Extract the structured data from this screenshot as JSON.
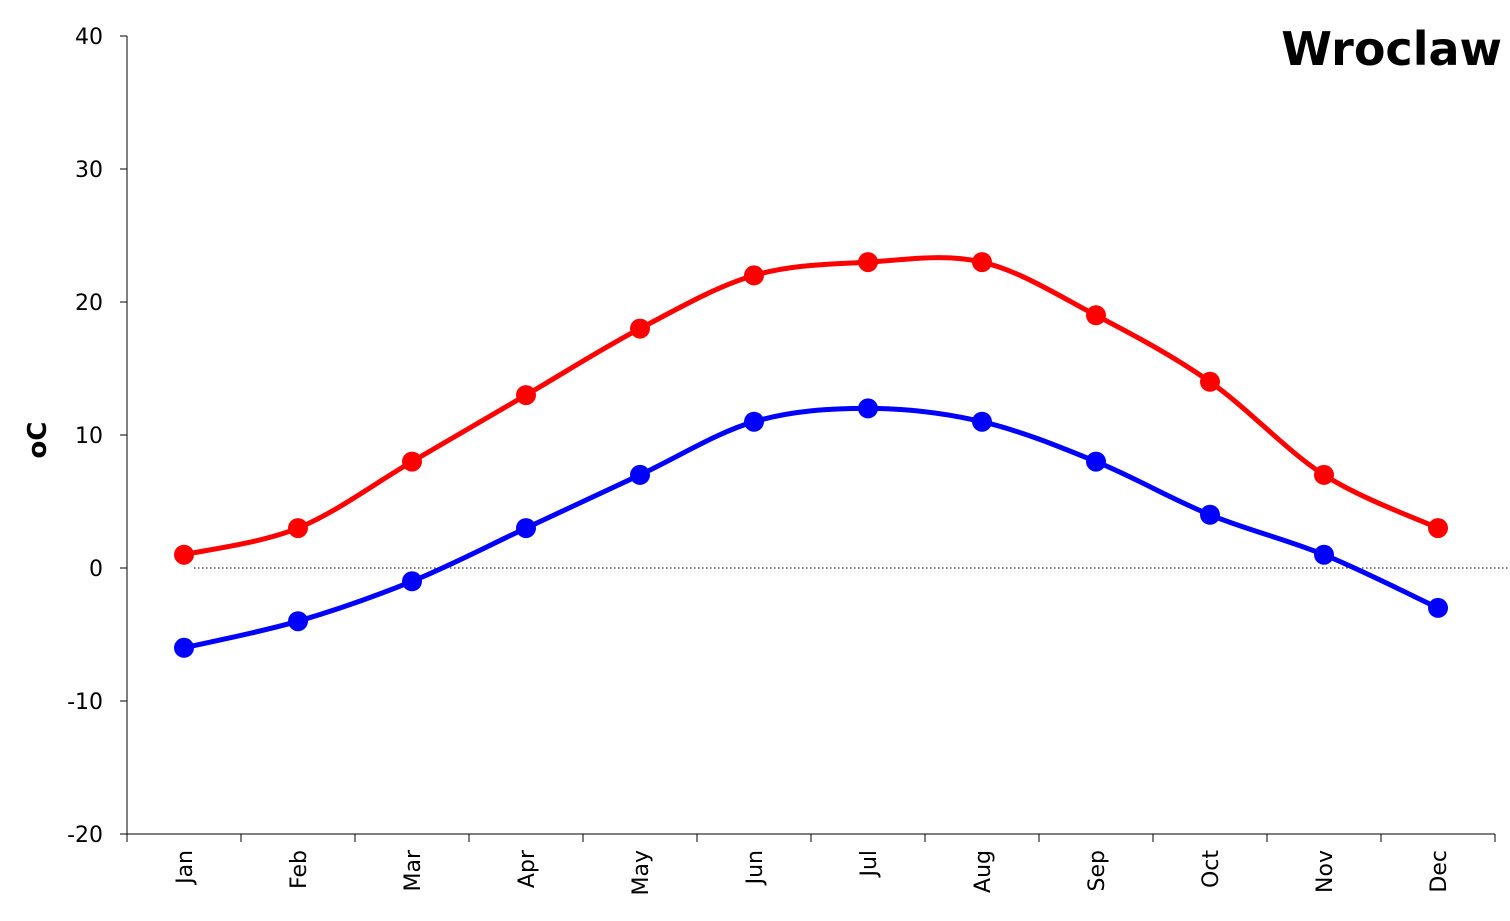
{
  "chart_data": {
    "type": "line",
    "title": "Wroclaw",
    "ylabel": "oC",
    "xlabel": "",
    "ylim": [
      -20,
      40
    ],
    "yticks": [
      -20,
      -10,
      0,
      10,
      20,
      30,
      40
    ],
    "categories": [
      "Jan",
      "Feb",
      "Mar",
      "Apr",
      "May",
      "Jun",
      "Jul",
      "Aug",
      "Sep",
      "Oct",
      "Nov",
      "Dec"
    ],
    "zero_line": true,
    "grid": false,
    "series": [
      {
        "color": "#ff0000",
        "values": [
          1,
          3,
          8,
          13,
          18,
          22,
          23,
          23,
          19,
          14,
          7,
          3
        ]
      },
      {
        "color": "#0000ff",
        "values": [
          -6,
          -4,
          -1,
          3,
          7,
          11,
          12,
          11,
          8,
          4,
          1,
          -3
        ]
      }
    ]
  }
}
